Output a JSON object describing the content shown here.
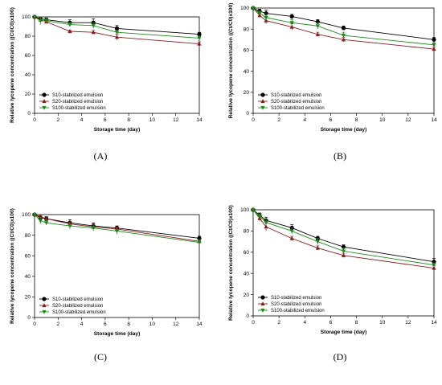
{
  "figure": {
    "panels": [
      {
        "label": "(A)",
        "chart_data": {
          "type": "line",
          "xlabel": "Storage time (day)",
          "ylabel": "Relative lycopene concentration ((Ct/C0)x100)",
          "xlim": [
            0,
            14
          ],
          "ylim": [
            0,
            100
          ],
          "xticks": [
            0,
            2,
            4,
            6,
            8,
            10,
            12,
            14
          ],
          "yticks": [
            0,
            20,
            40,
            60,
            80,
            100
          ],
          "grid": false,
          "legend_position": "bottom-left",
          "x": [
            0,
            0.5,
            1,
            3,
            5,
            7,
            14
          ],
          "series": [
            {
              "name": "S10-stabilized emulsion",
              "color": "#000000",
              "marker": "circle",
              "values": [
                100,
                98,
                97,
                94,
                94,
                88,
                82
              ],
              "errors": [
                1,
                2,
                2,
                3,
                4,
                3,
                2
              ]
            },
            {
              "name": "S20-stabilized emulsion",
              "color": "#8b1a1a",
              "marker": "triangle-up",
              "values": [
                100,
                97,
                95,
                85,
                84,
                79,
                72
              ],
              "errors": [
                1,
                2,
                2,
                1,
                2,
                3,
                2
              ]
            },
            {
              "name": "S100-stabilized emulsion",
              "color": "#1a8c1a",
              "marker": "triangle-down",
              "values": [
                100,
                96,
                96,
                92,
                91,
                84,
                78
              ],
              "errors": [
                1,
                4,
                3,
                2,
                3,
                2,
                2
              ]
            }
          ]
        }
      },
      {
        "label": "(B)",
        "chart_data": {
          "type": "line",
          "xlabel": "Storage time (day)",
          "ylabel": "Relative lycopene concentration ((Ct/C0)x100)",
          "xlim": [
            0,
            14
          ],
          "ylim": [
            0,
            100
          ],
          "xticks": [
            0,
            2,
            4,
            6,
            8,
            10,
            12,
            14
          ],
          "yticks": [
            0,
            20,
            40,
            60,
            80,
            100
          ],
          "grid": false,
          "legend_position": "bottom-left",
          "x": [
            0,
            0.5,
            1,
            3,
            5,
            7,
            14
          ],
          "series": [
            {
              "name": "S10-stabilized emulsion",
              "color": "#000000",
              "marker": "circle",
              "values": [
                100,
                97,
                95,
                92,
                87,
                81,
                70
              ],
              "errors": [
                1,
                2,
                3,
                2,
                2,
                2,
                2
              ]
            },
            {
              "name": "S20-stabilized emulsion",
              "color": "#8b1a1a",
              "marker": "triangle-up",
              "values": [
                100,
                93,
                88,
                82,
                75,
                70,
                61
              ],
              "errors": [
                1,
                2,
                3,
                3,
                2,
                2,
                2
              ]
            },
            {
              "name": "S100-stabilized emulsion",
              "color": "#1a8c1a",
              "marker": "triangle-down",
              "values": [
                100,
                95,
                91,
                86,
                83,
                74,
                65
              ],
              "errors": [
                1,
                2,
                3,
                3,
                3,
                3,
                2
              ]
            }
          ]
        }
      },
      {
        "label": "(C)",
        "chart_data": {
          "type": "line",
          "xlabel": "Storage time (day)",
          "ylabel": "Relative lycopene concentration ((Ct/C0)x100)",
          "xlim": [
            0,
            14
          ],
          "ylim": [
            0,
            100
          ],
          "xticks": [
            0,
            2,
            4,
            6,
            8,
            10,
            12,
            14
          ],
          "yticks": [
            0,
            20,
            40,
            60,
            80,
            100
          ],
          "grid": false,
          "legend_position": "bottom-left",
          "x": [
            0,
            0.5,
            1,
            3,
            5,
            7,
            14
          ],
          "series": [
            {
              "name": "S10-stabilized emulsion",
              "color": "#000000",
              "marker": "circle",
              "values": [
                100,
                97,
                96,
                92,
                89,
                87,
                77
              ],
              "errors": [
                1,
                2,
                2,
                3,
                3,
                2,
                2
              ]
            },
            {
              "name": "S20-stabilized emulsion",
              "color": "#8b1a1a",
              "marker": "triangle-up",
              "values": [
                100,
                98,
                96,
                91,
                88,
                86,
                74
              ],
              "errors": [
                1,
                1,
                2,
                2,
                3,
                2,
                2
              ]
            },
            {
              "name": "S100-stabilized emulsion",
              "color": "#1a8c1a",
              "marker": "triangle-down",
              "values": [
                100,
                94,
                92,
                89,
                87,
                84,
                73
              ],
              "errors": [
                1,
                3,
                2,
                3,
                3,
                3,
                2
              ]
            }
          ]
        }
      },
      {
        "label": "(D)",
        "chart_data": {
          "type": "line",
          "xlabel": "Storage time (day)",
          "ylabel": "Relative lycopene concentration ((Ct/C0)x100)",
          "xlim": [
            0,
            14
          ],
          "ylim": [
            0,
            100
          ],
          "xticks": [
            0,
            2,
            4,
            6,
            8,
            10,
            12,
            14
          ],
          "yticks": [
            0,
            20,
            40,
            60,
            80,
            100
          ],
          "grid": false,
          "legend_position": "bottom-left",
          "x": [
            0,
            0.5,
            1,
            3,
            5,
            7,
            14
          ],
          "series": [
            {
              "name": "S10-stabilized emulsion",
              "color": "#000000",
              "marker": "circle",
              "values": [
                100,
                95,
                90,
                83,
                73,
                65,
                51
              ],
              "errors": [
                1,
                2,
                3,
                3,
                2,
                2,
                3
              ]
            },
            {
              "name": "S20-stabilized emulsion",
              "color": "#8b1a1a",
              "marker": "triangle-up",
              "values": [
                100,
                92,
                84,
                73,
                64,
                57,
                45
              ],
              "errors": [
                1,
                3,
                4,
                2,
                2,
                2,
                2
              ]
            },
            {
              "name": "S100-stabilized emulsion",
              "color": "#1a8c1a",
              "marker": "triangle-down",
              "values": [
                100,
                94,
                88,
                80,
                70,
                61,
                48
              ],
              "errors": [
                1,
                2,
                3,
                3,
                3,
                3,
                2
              ]
            }
          ]
        }
      }
    ]
  }
}
